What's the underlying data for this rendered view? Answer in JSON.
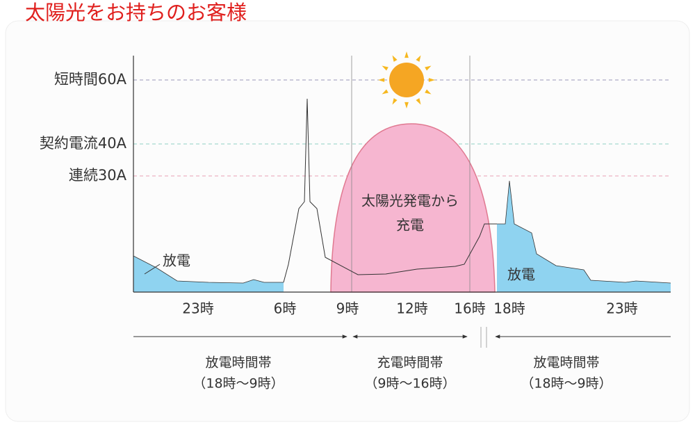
{
  "header": {
    "title": "太陽光をお持ちのお客様"
  },
  "levels": [
    {
      "label": "短時間60A"
    },
    {
      "label": "契約電流40A"
    },
    {
      "label": "連続30A"
    }
  ],
  "time_labels": [
    "23時",
    "6時",
    "9時",
    "12時",
    "16時",
    "18時",
    "23時"
  ],
  "annotations": {
    "discharge_left": "放電",
    "discharge_right": "放電",
    "charge": [
      "太陽光発電から",
      "充電"
    ]
  },
  "periods": [
    {
      "name": "放電時間帯",
      "range": "（18時～9時）"
    },
    {
      "name": "充電時間帯",
      "range": "（9時～16時）"
    },
    {
      "name": "放電時間帯",
      "range": "（18時～9時）"
    }
  ]
}
